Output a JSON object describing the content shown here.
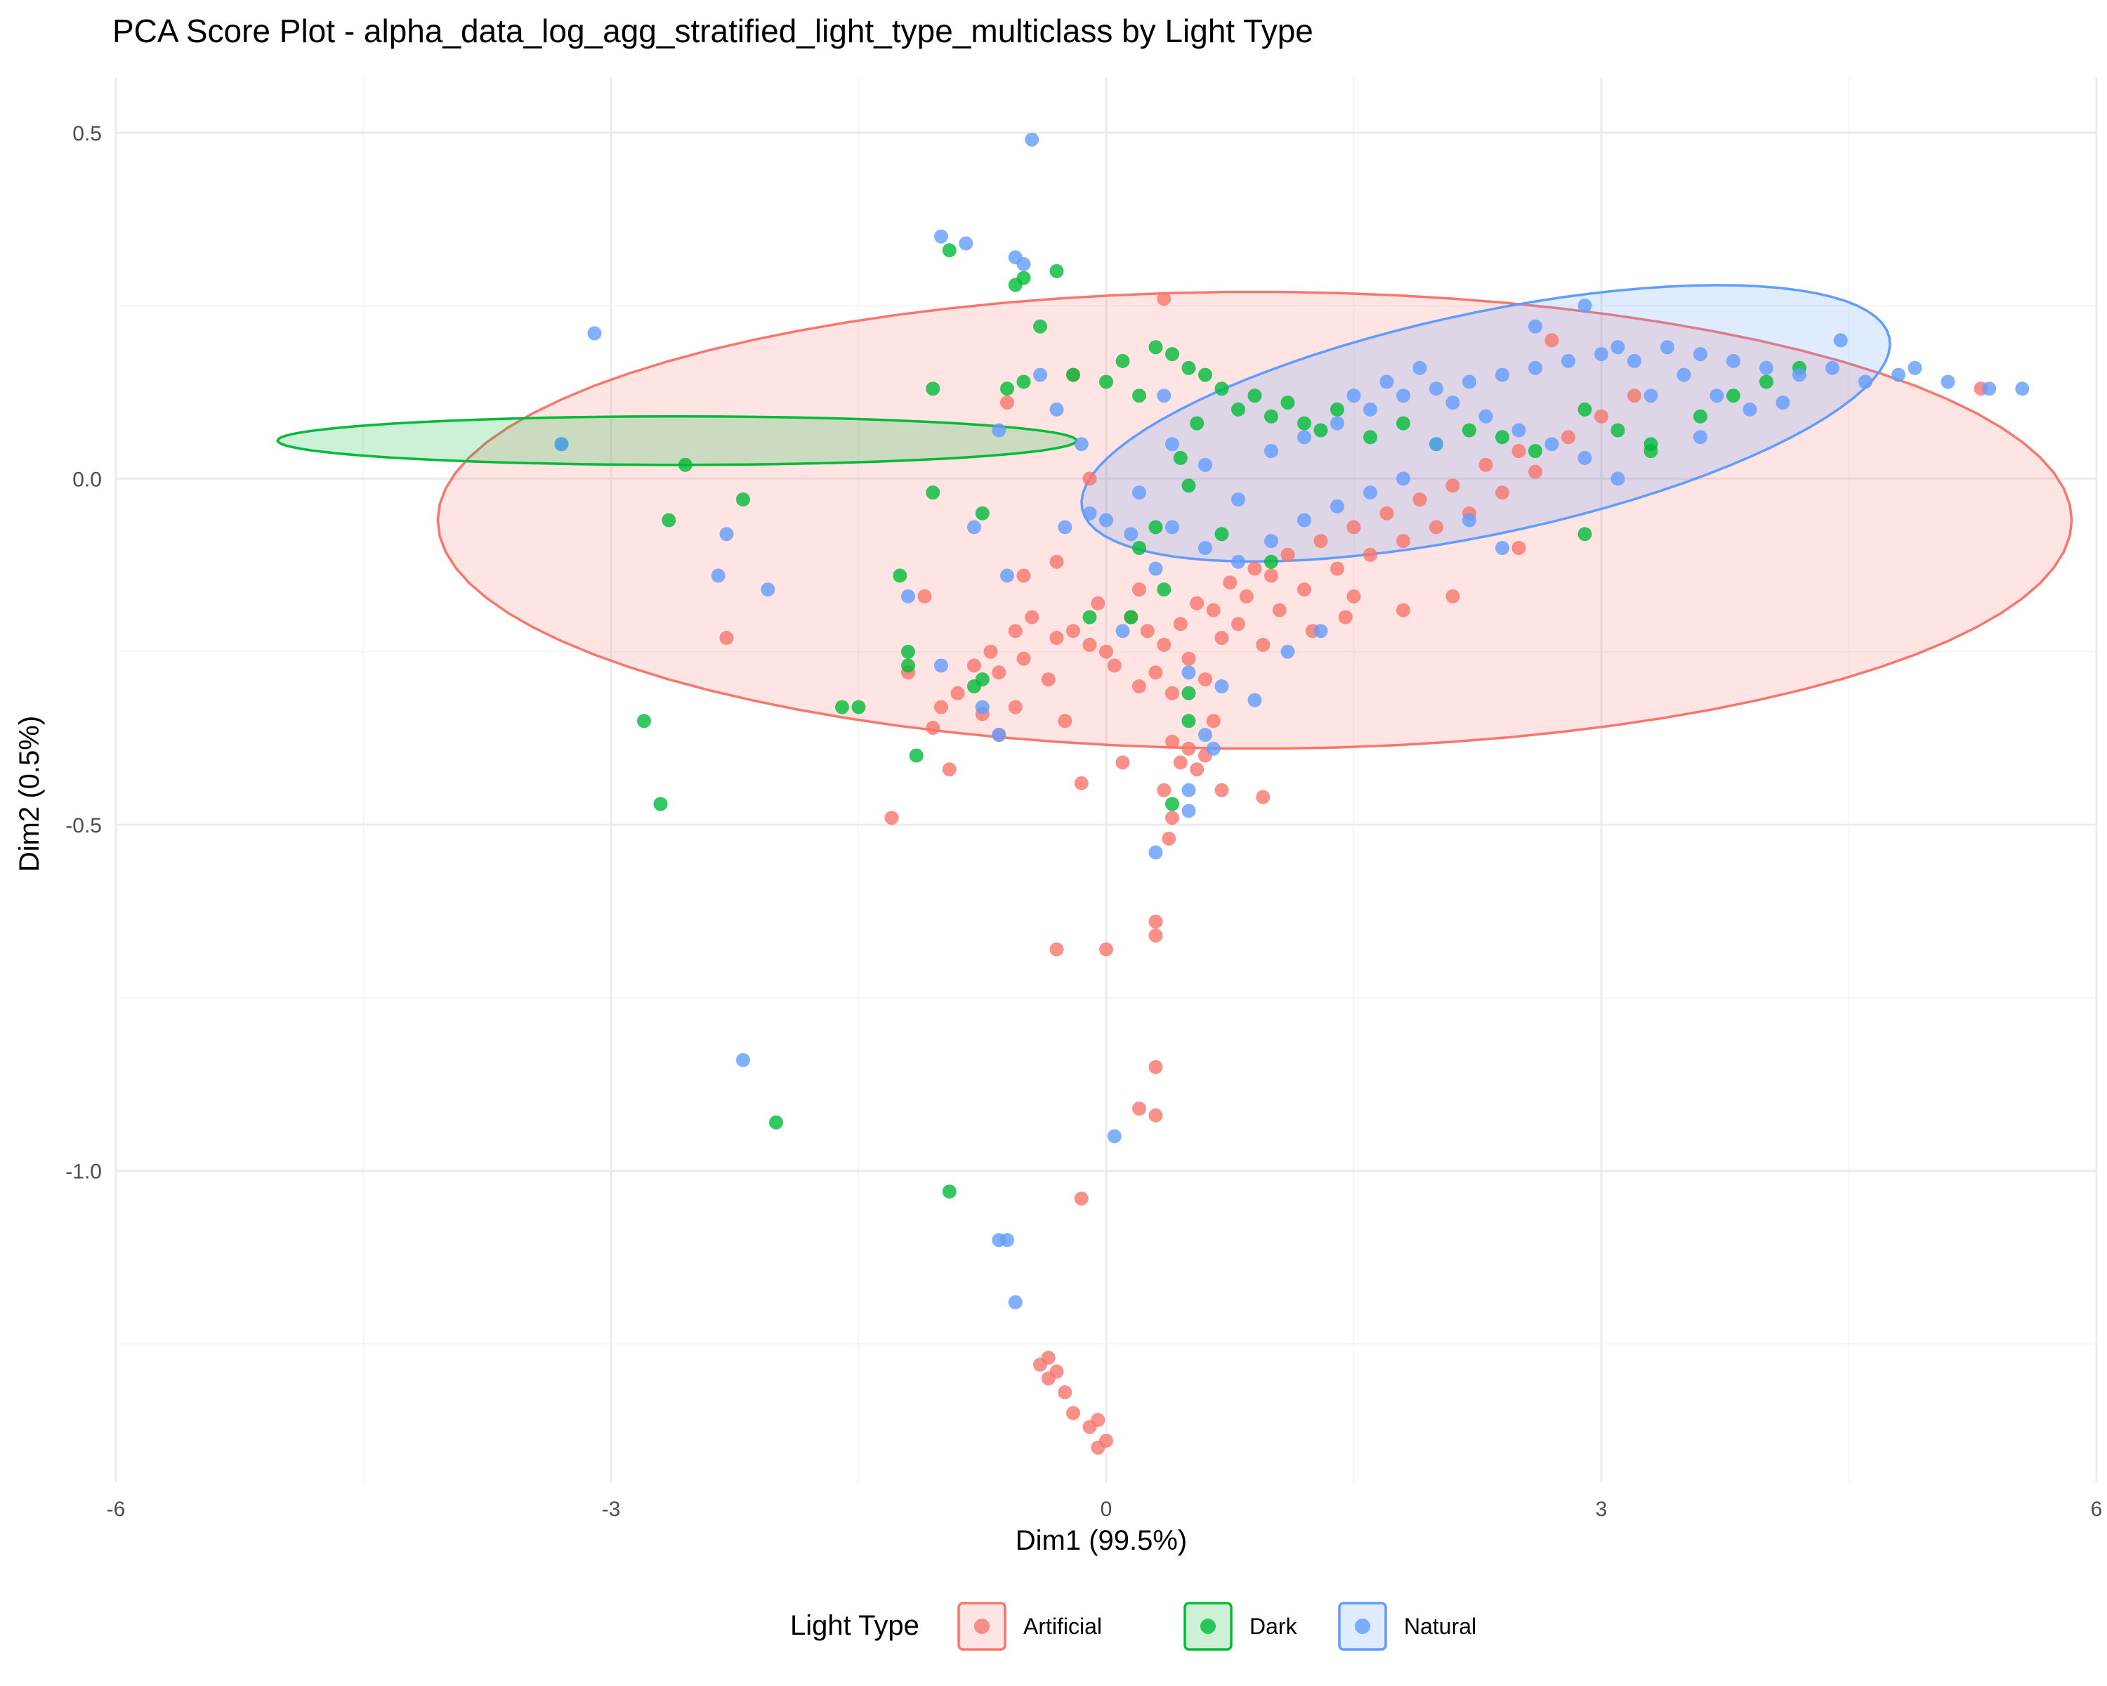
{
  "chart_data": {
    "type": "scatter",
    "title": "PCA Score Plot - alpha_data_log_agg_stratified_light_type_multiclass by Light Type",
    "xlabel": "Dim1 (99.5%)",
    "ylabel": "Dim2 (0.5%)",
    "xlim": [
      -6,
      6
    ],
    "ylim": [
      -1.45,
      0.58
    ],
    "x_ticks": [
      -6,
      -3,
      0,
      3,
      6
    ],
    "x_tick_labels": [
      "-6",
      "-3",
      "0",
      "3",
      "6"
    ],
    "y_ticks": [
      -1.0,
      -0.5,
      0.0,
      0.5
    ],
    "y_tick_labels": [
      "-1.0",
      "-0.5",
      "0.0",
      "0.5"
    ],
    "grid": true,
    "legend": {
      "title": "Light Type",
      "position": "bottom"
    },
    "series": [
      {
        "name": "Artificial",
        "color": "#F8766D",
        "ellipse": {
          "cx": 0.9,
          "cy": -0.06,
          "rx": 4.95,
          "ry": 0.33,
          "angle": 0
        },
        "points": [
          [
            -2.3,
            -0.23
          ],
          [
            -1.3,
            -0.49
          ],
          [
            -1.2,
            -0.28
          ],
          [
            -1.1,
            -0.17
          ],
          [
            -1.05,
            -0.36
          ],
          [
            -1.0,
            -0.33
          ],
          [
            -0.9,
            -0.31
          ],
          [
            -0.8,
            -0.27
          ],
          [
            -0.75,
            -0.34
          ],
          [
            -0.7,
            -0.25
          ],
          [
            -0.65,
            -0.28
          ],
          [
            -0.55,
            -0.22
          ],
          [
            -0.5,
            -0.26
          ],
          [
            -0.45,
            -0.2
          ],
          [
            -0.35,
            -0.29
          ],
          [
            -0.3,
            -0.23
          ],
          [
            -0.25,
            -0.35
          ],
          [
            -0.2,
            -0.22
          ],
          [
            -0.15,
            -0.44
          ],
          [
            -0.1,
            -0.24
          ],
          [
            -0.05,
            -0.18
          ],
          [
            0.0,
            -0.25
          ],
          [
            0.05,
            -0.27
          ],
          [
            0.1,
            -0.41
          ],
          [
            0.15,
            -0.2
          ],
          [
            0.2,
            -0.16
          ],
          [
            0.25,
            -0.22
          ],
          [
            0.3,
            -0.28
          ],
          [
            0.35,
            -0.24
          ],
          [
            0.4,
            -0.31
          ],
          [
            0.45,
            -0.21
          ],
          [
            0.5,
            -0.26
          ],
          [
            0.55,
            -0.18
          ],
          [
            0.6,
            -0.29
          ],
          [
            0.65,
            -0.19
          ],
          [
            0.7,
            -0.23
          ],
          [
            0.75,
            -0.15
          ],
          [
            0.8,
            -0.21
          ],
          [
            0.85,
            -0.17
          ],
          [
            0.9,
            -0.13
          ],
          [
            0.95,
            -0.24
          ],
          [
            1.0,
            -0.14
          ],
          [
            1.05,
            -0.19
          ],
          [
            1.1,
            -0.11
          ],
          [
            1.2,
            -0.16
          ],
          [
            1.3,
            -0.09
          ],
          [
            1.4,
            -0.13
          ],
          [
            1.5,
            -0.07
          ],
          [
            1.6,
            -0.11
          ],
          [
            1.7,
            -0.05
          ],
          [
            1.8,
            -0.09
          ],
          [
            1.9,
            -0.03
          ],
          [
            2.0,
            -0.07
          ],
          [
            2.1,
            -0.01
          ],
          [
            2.2,
            -0.05
          ],
          [
            2.3,
            0.02
          ],
          [
            2.4,
            -0.02
          ],
          [
            2.5,
            0.04
          ],
          [
            2.6,
            0.01
          ],
          [
            2.8,
            0.06
          ],
          [
            3.0,
            0.09
          ],
          [
            3.2,
            0.12
          ],
          [
            0.4,
            -0.38
          ],
          [
            0.45,
            -0.41
          ],
          [
            0.5,
            -0.39
          ],
          [
            0.55,
            -0.42
          ],
          [
            0.6,
            -0.4
          ],
          [
            0.35,
            -0.45
          ],
          [
            0.4,
            -0.49
          ],
          [
            0.38,
            -0.52
          ],
          [
            0.7,
            -0.45
          ],
          [
            0.95,
            -0.46
          ],
          [
            0.3,
            -0.64
          ],
          [
            0.3,
            -0.66
          ],
          [
            0.0,
            -0.68
          ],
          [
            -0.3,
            -0.68
          ],
          [
            0.3,
            -0.85
          ],
          [
            0.2,
            -0.91
          ],
          [
            0.3,
            -0.92
          ],
          [
            -0.15,
            -1.04
          ],
          [
            -0.4,
            -1.28
          ],
          [
            -0.35,
            -1.3
          ],
          [
            -0.3,
            -1.29
          ],
          [
            -0.25,
            -1.32
          ],
          [
            -0.2,
            -1.35
          ],
          [
            -0.1,
            -1.37
          ],
          [
            -0.05,
            -1.36
          ],
          [
            0.0,
            -1.39
          ],
          [
            -0.05,
            -1.4
          ],
          [
            -0.35,
            -1.27
          ],
          [
            -0.6,
            0.11
          ],
          [
            -0.2,
            0.15
          ],
          [
            -0.1,
            0.0
          ],
          [
            -0.3,
            -0.12
          ],
          [
            -0.5,
            -0.14
          ],
          [
            1.5,
            -0.17
          ],
          [
            1.8,
            -0.19
          ],
          [
            2.1,
            -0.17
          ],
          [
            2.5,
            -0.1
          ],
          [
            2.7,
            0.2
          ],
          [
            5.3,
            0.13
          ],
          [
            0.35,
            0.26
          ],
          [
            -0.55,
            -0.33
          ],
          [
            -0.65,
            -0.37
          ],
          [
            0.65,
            -0.35
          ],
          [
            1.25,
            -0.22
          ],
          [
            1.45,
            -0.2
          ],
          [
            0.2,
            -0.3
          ],
          [
            -0.95,
            -0.42
          ]
        ]
      },
      {
        "name": "Dark",
        "color": "#00BA38",
        "ellipse": {
          "cx": -2.6,
          "cy": 0.055,
          "rx": 2.42,
          "ry": 0.035,
          "angle": 0
        },
        "points": [
          [
            -3.3,
            0.05
          ],
          [
            -2.55,
            0.02
          ],
          [
            -2.65,
            -0.06
          ],
          [
            -2.2,
            -0.03
          ],
          [
            -2.8,
            -0.35
          ],
          [
            -2.7,
            -0.47
          ],
          [
            -2.0,
            -0.93
          ],
          [
            -0.95,
            -1.03
          ],
          [
            -1.05,
            0.13
          ],
          [
            -1.05,
            -0.02
          ],
          [
            -0.95,
            0.33
          ],
          [
            -0.5,
            0.29
          ],
          [
            -0.55,
            0.28
          ],
          [
            -0.3,
            0.3
          ],
          [
            -0.4,
            0.22
          ],
          [
            -1.25,
            -0.14
          ],
          [
            -1.2,
            -0.25
          ],
          [
            -1.2,
            -0.27
          ],
          [
            -1.5,
            -0.33
          ],
          [
            -1.6,
            -0.33
          ],
          [
            -1.15,
            -0.4
          ],
          [
            -0.8,
            -0.3
          ],
          [
            -0.75,
            -0.29
          ],
          [
            -0.75,
            -0.05
          ],
          [
            -0.6,
            0.13
          ],
          [
            -0.5,
            0.14
          ],
          [
            -0.2,
            0.15
          ],
          [
            0.0,
            0.14
          ],
          [
            0.1,
            0.17
          ],
          [
            0.2,
            0.12
          ],
          [
            0.3,
            0.19
          ],
          [
            0.4,
            0.18
          ],
          [
            0.5,
            0.16
          ],
          [
            0.6,
            0.15
          ],
          [
            0.7,
            0.13
          ],
          [
            0.8,
            0.1
          ],
          [
            0.9,
            0.12
          ],
          [
            1.0,
            0.09
          ],
          [
            1.1,
            0.11
          ],
          [
            1.2,
            0.08
          ],
          [
            1.3,
            0.07
          ],
          [
            1.4,
            0.1
          ],
          [
            1.6,
            0.06
          ],
          [
            1.8,
            0.08
          ],
          [
            2.0,
            0.05
          ],
          [
            2.2,
            0.07
          ],
          [
            2.4,
            0.06
          ],
          [
            2.6,
            0.04
          ],
          [
            2.9,
            0.1
          ],
          [
            3.1,
            0.07
          ],
          [
            3.3,
            0.05
          ],
          [
            3.6,
            0.09
          ],
          [
            3.8,
            0.12
          ],
          [
            4.0,
            0.14
          ],
          [
            4.2,
            0.16
          ],
          [
            0.5,
            -0.01
          ],
          [
            0.7,
            -0.08
          ],
          [
            1.0,
            -0.12
          ],
          [
            0.3,
            -0.07
          ],
          [
            0.2,
            -0.1
          ],
          [
            0.5,
            -0.31
          ],
          [
            0.5,
            -0.35
          ],
          [
            0.4,
            -0.47
          ],
          [
            0.35,
            -0.16
          ],
          [
            0.15,
            -0.2
          ],
          [
            -0.1,
            -0.2
          ],
          [
            2.9,
            -0.08
          ],
          [
            3.3,
            0.04
          ],
          [
            0.55,
            0.08
          ],
          [
            0.45,
            0.03
          ]
        ]
      },
      {
        "name": "Natural",
        "color": "#619CFF",
        "ellipse": {
          "cx": 2.3,
          "cy": 0.08,
          "rx": 2.5,
          "ry": 0.16,
          "angle": -12
        },
        "points": [
          [
            -3.3,
            0.05
          ],
          [
            -3.1,
            0.21
          ],
          [
            -2.3,
            -0.08
          ],
          [
            -2.35,
            -0.14
          ],
          [
            -2.05,
            -0.16
          ],
          [
            -2.2,
            -0.84
          ],
          [
            -1.2,
            -0.17
          ],
          [
            -1.0,
            0.35
          ],
          [
            -0.85,
            0.34
          ],
          [
            -0.55,
            0.32
          ],
          [
            -0.5,
            0.31
          ],
          [
            -0.45,
            0.49
          ],
          [
            -0.65,
            0.07
          ],
          [
            -0.8,
            -0.07
          ],
          [
            -0.6,
            -0.14
          ],
          [
            -0.75,
            -0.33
          ],
          [
            -0.65,
            -0.37
          ],
          [
            -1.0,
            -0.27
          ],
          [
            -0.65,
            -1.1
          ],
          [
            -0.6,
            -1.1
          ],
          [
            -0.55,
            -1.19
          ],
          [
            0.05,
            -0.95
          ],
          [
            0.3,
            -0.54
          ],
          [
            0.5,
            -0.45
          ],
          [
            0.5,
            -0.48
          ],
          [
            -0.4,
            0.15
          ],
          [
            -0.3,
            0.1
          ],
          [
            -0.15,
            0.05
          ],
          [
            0.0,
            -0.06
          ],
          [
            0.2,
            -0.02
          ],
          [
            0.4,
            0.05
          ],
          [
            0.6,
            0.02
          ],
          [
            0.8,
            -0.03
          ],
          [
            1.0,
            0.04
          ],
          [
            1.2,
            0.06
          ],
          [
            1.4,
            0.08
          ],
          [
            1.6,
            0.1
          ],
          [
            1.8,
            0.12
          ],
          [
            2.0,
            0.13
          ],
          [
            2.2,
            0.14
          ],
          [
            2.4,
            0.15
          ],
          [
            2.6,
            0.16
          ],
          [
            2.8,
            0.17
          ],
          [
            3.0,
            0.18
          ],
          [
            3.2,
            0.17
          ],
          [
            3.4,
            0.19
          ],
          [
            3.6,
            0.18
          ],
          [
            3.8,
            0.17
          ],
          [
            4.0,
            0.16
          ],
          [
            4.2,
            0.15
          ],
          [
            4.4,
            0.16
          ],
          [
            4.6,
            0.14
          ],
          [
            4.8,
            0.15
          ],
          [
            5.1,
            0.14
          ],
          [
            5.35,
            0.13
          ],
          [
            5.55,
            0.13
          ],
          [
            4.9,
            0.16
          ],
          [
            4.45,
            0.2
          ],
          [
            2.9,
            0.25
          ],
          [
            2.6,
            0.22
          ],
          [
            3.1,
            0.19
          ],
          [
            3.5,
            0.15
          ],
          [
            3.7,
            0.12
          ],
          [
            3.9,
            0.1
          ],
          [
            4.1,
            0.11
          ],
          [
            2.0,
            0.05
          ],
          [
            1.8,
            0.0
          ],
          [
            1.6,
            -0.02
          ],
          [
            1.4,
            -0.04
          ],
          [
            1.2,
            -0.06
          ],
          [
            1.0,
            -0.09
          ],
          [
            0.8,
            -0.12
          ],
          [
            0.6,
            -0.1
          ],
          [
            0.4,
            -0.07
          ],
          [
            0.3,
            -0.13
          ],
          [
            0.5,
            -0.28
          ],
          [
            0.7,
            -0.3
          ],
          [
            0.9,
            -0.32
          ],
          [
            1.1,
            -0.25
          ],
          [
            1.3,
            -0.22
          ],
          [
            0.65,
            -0.39
          ],
          [
            0.6,
            -0.37
          ],
          [
            -0.1,
            -0.05
          ],
          [
            -0.25,
            -0.07
          ],
          [
            0.1,
            -0.22
          ],
          [
            0.15,
            -0.08
          ],
          [
            1.5,
            0.12
          ],
          [
            1.7,
            0.14
          ],
          [
            1.9,
            0.16
          ],
          [
            2.1,
            0.11
          ],
          [
            2.3,
            0.09
          ],
          [
            2.5,
            0.07
          ],
          [
            2.7,
            0.05
          ],
          [
            2.9,
            0.03
          ],
          [
            3.1,
            0.0
          ],
          [
            2.4,
            -0.1
          ],
          [
            2.2,
            -0.06
          ],
          [
            3.3,
            0.12
          ],
          [
            3.6,
            0.06
          ],
          [
            0.35,
            0.12
          ]
        ]
      }
    ]
  }
}
